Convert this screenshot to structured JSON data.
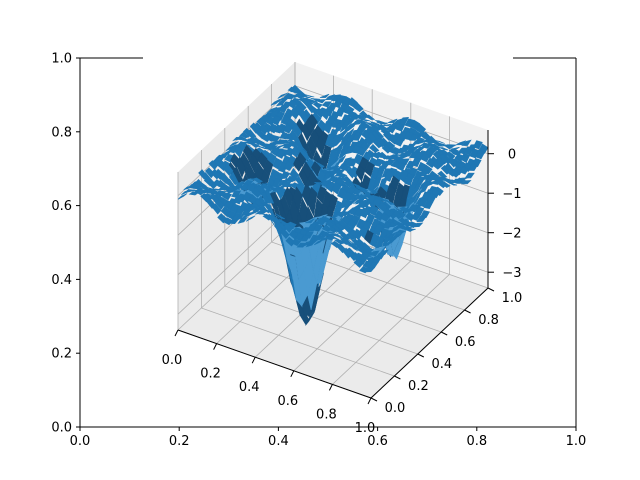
{
  "chart_data": [
    {
      "type": "line",
      "title": "",
      "xlabel": "",
      "ylabel": "",
      "xlim": [
        0,
        1
      ],
      "ylim": [
        0,
        1
      ],
      "xticks": [
        "0.0",
        "0.2",
        "0.4",
        "0.6",
        "0.8",
        "1.0"
      ],
      "yticks": [
        "0.0",
        "0.2",
        "0.4",
        "0.6",
        "0.8",
        "1.0"
      ],
      "series": [],
      "grid": false
    },
    {
      "type": "surface3d",
      "title": "",
      "xlabel": "",
      "ylabel": "",
      "zlabel": "",
      "xlim": [
        0,
        1
      ],
      "ylim": [
        0,
        1
      ],
      "zlim": [
        -3.4,
        0.6
      ],
      "xticks": [
        "0.0",
        "0.2",
        "0.4",
        "0.6",
        "0.8",
        "1.0"
      ],
      "yticks": [
        "0.0",
        "0.2",
        "0.4",
        "0.6",
        "0.8",
        "1.0"
      ],
      "zticks": [
        "−3",
        "−2",
        "−1",
        "0"
      ],
      "grid": true,
      "surface_color": "#1f77b4",
      "surface_description_points": [
        {
          "x": 0.0,
          "y": 0.0,
          "z": 0.0
        },
        {
          "x": 0.5,
          "y": 0.3,
          "z": -3.2
        },
        {
          "x": 0.55,
          "y": 0.35,
          "z": -3.0
        },
        {
          "x": 0.7,
          "y": 0.6,
          "z": -1.8
        },
        {
          "x": 0.3,
          "y": 0.7,
          "z": -1.2
        },
        {
          "x": 1.0,
          "y": 1.0,
          "z": 0.0
        }
      ]
    }
  ],
  "colors": {
    "pane": "#f2f2f2",
    "pane_side": "#ebebeb",
    "grid": "#b0b0b0",
    "surface": "#1f77b4",
    "surface_dark": "#174f7a",
    "surface_light": "#4a9ad1"
  }
}
